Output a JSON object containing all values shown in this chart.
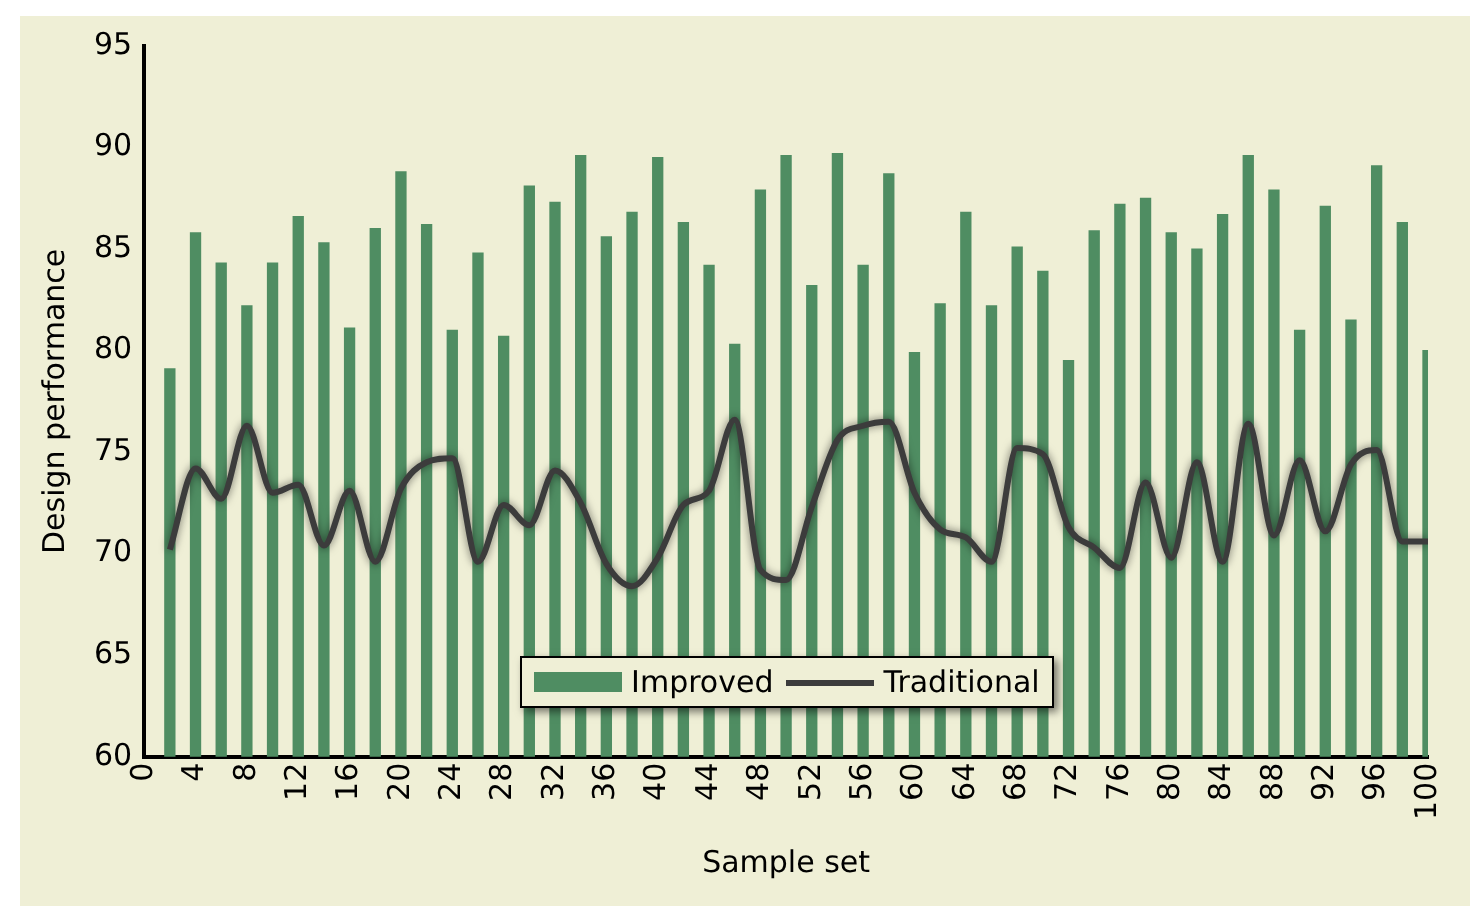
{
  "chart_data": {
    "type": "bar",
    "xlabel": "Sample set",
    "ylabel": "Design performance",
    "x": [
      2,
      4,
      6,
      8,
      10,
      12,
      14,
      16,
      18,
      20,
      22,
      24,
      26,
      28,
      30,
      32,
      34,
      36,
      38,
      40,
      42,
      44,
      46,
      48,
      50,
      52,
      54,
      56,
      58,
      60,
      62,
      64,
      66,
      68,
      70,
      72,
      74,
      76,
      78,
      80,
      82,
      84,
      86,
      88,
      90,
      92,
      94,
      96,
      98,
      100
    ],
    "series": [
      {
        "name": "Improved",
        "color": "#4f8d62",
        "values": [
          79.1,
          85.8,
          84.3,
          82.2,
          84.3,
          86.6,
          85.3,
          81.1,
          86.0,
          88.8,
          86.2,
          81.0,
          84.8,
          80.7,
          88.1,
          87.3,
          89.6,
          85.6,
          86.8,
          89.5,
          86.3,
          84.2,
          80.3,
          87.9,
          89.6,
          83.2,
          89.7,
          84.2,
          88.7,
          79.9,
          82.3,
          86.8,
          82.2,
          85.1,
          83.9,
          79.5,
          85.9,
          87.2,
          87.5,
          85.8,
          85.0,
          86.7,
          89.6,
          87.9,
          81.0,
          87.1,
          81.5,
          89.1,
          86.3,
          80.0
        ]
      },
      {
        "name": "Traditional",
        "type": "line",
        "color": "#3c3c3c",
        "values": [
          70.2,
          74.2,
          72.7,
          76.3,
          73.0,
          73.4,
          70.4,
          73.1,
          69.6,
          73.2,
          74.5,
          74.7,
          69.6,
          72.4,
          71.4,
          74.1,
          72.5,
          69.5,
          68.4,
          69.8,
          72.4,
          73.1,
          76.6,
          69.2,
          68.7,
          72.3,
          75.6,
          76.3,
          76.5,
          73.0,
          71.2,
          70.8,
          69.6,
          75.2,
          74.9,
          71.3,
          70.3,
          69.3,
          73.5,
          69.8,
          74.5,
          69.6,
          76.4,
          70.9,
          74.6,
          71.1,
          74.4,
          75.1,
          70.6,
          70.6
        ]
      }
    ],
    "xlim": [
      0,
      100
    ],
    "xticks": [
      0,
      4,
      8,
      12,
      16,
      20,
      24,
      28,
      32,
      36,
      40,
      44,
      48,
      52,
      56,
      60,
      64,
      68,
      72,
      76,
      80,
      84,
      88,
      92,
      96,
      100
    ],
    "ylim": [
      60,
      95
    ],
    "yticks": [
      60,
      65,
      70,
      75,
      80,
      85,
      90,
      95
    ],
    "grid": false,
    "legend": "bottom",
    "marker": "none",
    "line_style": "solid"
  }
}
